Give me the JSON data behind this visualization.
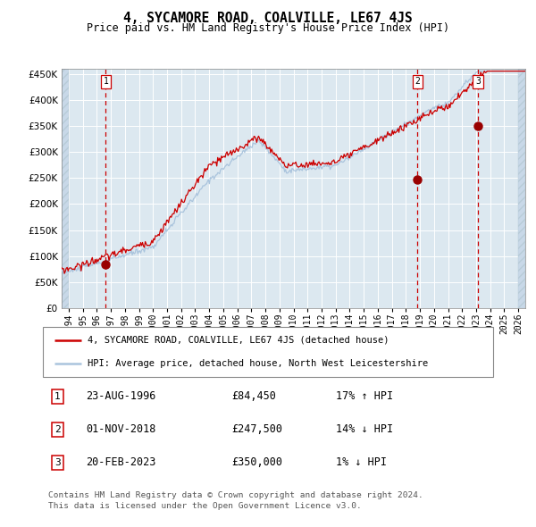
{
  "title": "4, SYCAMORE ROAD, COALVILLE, LE67 4JS",
  "subtitle": "Price paid vs. HM Land Registry's House Price Index (HPI)",
  "legend_line1": "4, SYCAMORE ROAD, COALVILLE, LE67 4JS (detached house)",
  "legend_line2": "HPI: Average price, detached house, North West Leicestershire",
  "footer1": "Contains HM Land Registry data © Crown copyright and database right 2024.",
  "footer2": "This data is licensed under the Open Government Licence v3.0.",
  "sale_points": [
    {
      "label": "1",
      "date": "23-AUG-1996",
      "price": 84450,
      "pct": "17%",
      "dir": "↑"
    },
    {
      "label": "2",
      "date": "01-NOV-2018",
      "price": 247500,
      "pct": "14%",
      "dir": "↓"
    },
    {
      "label": "3",
      "date": "20-FEB-2023",
      "price": 350000,
      "pct": "1%",
      "dir": "↓"
    }
  ],
  "sale_dates_decimal": [
    1996.645,
    2018.836,
    2023.128
  ],
  "sale_prices": [
    84450,
    247500,
    350000
  ],
  "hpi_color": "#aac4dd",
  "price_color": "#cc0000",
  "point_color": "#990000",
  "dashed_line_color": "#cc0000",
  "background_plot": "#dce8f0",
  "background_hatch": "#c8d8e8",
  "ylim": [
    0,
    460000
  ],
  "xlim_start": 1993.5,
  "xlim_end": 2026.5,
  "yticks": [
    0,
    50000,
    100000,
    150000,
    200000,
    250000,
    300000,
    350000,
    400000,
    450000
  ],
  "xticks": [
    1994,
    1995,
    1996,
    1997,
    1998,
    1999,
    2000,
    2001,
    2002,
    2003,
    2004,
    2005,
    2006,
    2007,
    2008,
    2009,
    2010,
    2011,
    2012,
    2013,
    2014,
    2015,
    2016,
    2017,
    2018,
    2019,
    2020,
    2021,
    2022,
    2023,
    2024,
    2025,
    2026
  ]
}
